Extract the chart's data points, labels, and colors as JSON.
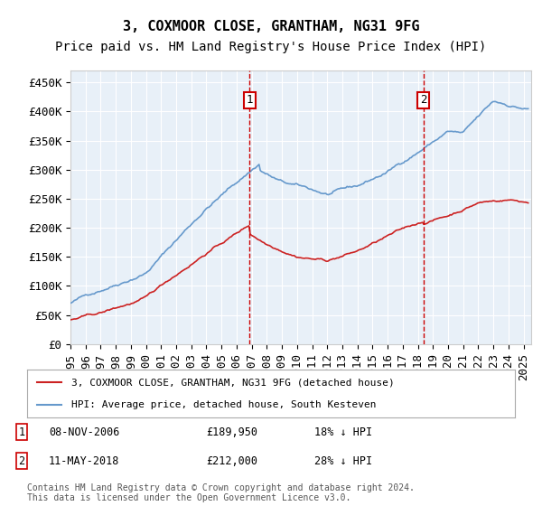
{
  "title": "3, COXMOOR CLOSE, GRANTHAM, NG31 9FG",
  "subtitle": "Price paid vs. HM Land Registry's House Price Index (HPI)",
  "ylabel_ticks": [
    "£0",
    "£50K",
    "£100K",
    "£150K",
    "£200K",
    "£250K",
    "£300K",
    "£350K",
    "£400K",
    "£450K"
  ],
  "ytick_values": [
    0,
    50000,
    100000,
    150000,
    200000,
    250000,
    300000,
    350000,
    400000,
    450000
  ],
  "ylim": [
    0,
    470000
  ],
  "xlim_start": 1995.0,
  "xlim_end": 2025.5,
  "background_color": "#e8f0f8",
  "plot_bg_color": "#e8f0f8",
  "hpi_color": "#6699cc",
  "price_color": "#cc2222",
  "vline_color": "#cc0000",
  "transaction1_date": 2006.86,
  "transaction1_price": 189950,
  "transaction2_date": 2018.36,
  "transaction2_price": 212000,
  "legend_label1": "3, COXMOOR CLOSE, GRANTHAM, NG31 9FG (detached house)",
  "legend_label2": "HPI: Average price, detached house, South Kesteven",
  "annotation1_label": "1",
  "annotation2_label": "2",
  "table_row1": "1     08-NOV-2006          £189,950          18% ↓ HPI",
  "table_row2": "2     11-MAY-2018          £212,000          28% ↓ HPI",
  "footer": "Contains HM Land Registry data © Crown copyright and database right 2024.\nThis data is licensed under the Open Government Licence v3.0.",
  "title_fontsize": 11,
  "subtitle_fontsize": 10,
  "tick_fontsize": 9
}
